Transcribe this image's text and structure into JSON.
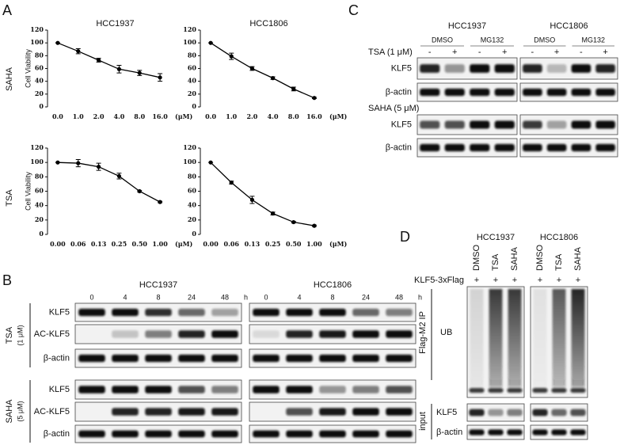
{
  "chart_data": [
    {
      "type": "line",
      "title": "HCC1937",
      "y_label": "Cell Viability",
      "x_label": "(μM)",
      "categories": [
        "0.0",
        "1.0",
        "2.0",
        "4.0",
        "8.0",
        "16.0"
      ],
      "values": [
        100,
        87,
        73,
        59,
        53,
        46
      ],
      "errors": [
        0,
        4,
        3,
        6,
        4,
        6
      ],
      "color": "#000000",
      "ylim": [
        0,
        120
      ],
      "yticks": [
        0,
        20,
        40,
        60,
        80,
        100,
        120
      ]
    },
    {
      "type": "line",
      "title": "HCC1806",
      "x_label": "(μM)",
      "categories": [
        "0.0",
        "1.0",
        "2.0",
        "4.0",
        "8.0",
        "16.0"
      ],
      "values": [
        100,
        79,
        60,
        45,
        28,
        14
      ],
      "errors": [
        0,
        5,
        3,
        2,
        3,
        1
      ],
      "color": "#000000",
      "ylim": [
        0,
        120
      ],
      "yticks": [
        0,
        20,
        40,
        60,
        80,
        100,
        120
      ]
    },
    {
      "type": "line",
      "y_label": "Cell Viability",
      "x_label": "(μM)",
      "categories": [
        "0.00",
        "0.06",
        "0.13",
        "0.25",
        "0.50",
        "1.00"
      ],
      "values": [
        100,
        99,
        94,
        81,
        60,
        45
      ],
      "errors": [
        0,
        5,
        5,
        4,
        1,
        1
      ],
      "color": "#000000",
      "ylim": [
        0,
        120
      ],
      "yticks": [
        0,
        20,
        40,
        60,
        80,
        100,
        120
      ]
    },
    {
      "type": "line",
      "x_label": "(μM)",
      "categories": [
        "0.00",
        "0.06",
        "0.13",
        "0.25",
        "0.50",
        "1.00"
      ],
      "values": [
        100,
        72,
        48,
        29,
        17,
        12
      ],
      "errors": [
        0,
        2,
        5,
        2,
        1,
        1
      ],
      "color": "#000000",
      "ylim": [
        0,
        120
      ],
      "yticks": [
        0,
        20,
        40,
        60,
        80,
        100,
        120
      ]
    }
  ],
  "panel_a": {
    "label": "A",
    "row_labels": [
      "SAHA",
      "TSA"
    ]
  },
  "panel_b": {
    "label": "B",
    "cell_lines": [
      "HCC1937",
      "HCC1806"
    ],
    "time_points": [
      "0",
      "4",
      "8",
      "24",
      "48"
    ],
    "time_unit": "h",
    "groups": [
      {
        "treatment": "TSA",
        "dose": "(1 μM)",
        "rows": [
          "KLF5",
          "AC-KLF5",
          "β-actin"
        ]
      },
      {
        "treatment": "SAHA",
        "dose": "(5 μM)",
        "rows": [
          "KLF5",
          "AC-KLF5",
          "β-actin"
        ]
      }
    ]
  },
  "panel_c": {
    "label": "C",
    "cell_lines": [
      "HCC1937",
      "HCC1806"
    ],
    "conditions": [
      "DMSO",
      "MG132"
    ],
    "treatments": [
      {
        "name": "TSA (1 μM)",
        "signs": [
          "-",
          "+"
        ],
        "rows": [
          "KLF5",
          "β-actin"
        ]
      },
      {
        "name": "SAHA (5 μM)",
        "rows": [
          "KLF5",
          "β-actin"
        ]
      }
    ]
  },
  "panel_d": {
    "label": "D",
    "cell_lines": [
      "HCC1937",
      "HCC1806"
    ],
    "lanes": [
      "DMSO",
      "TSA",
      "SAHA"
    ],
    "construct": "KLF5-3xFlag",
    "construct_sign": "+",
    "ip": {
      "label": "Flag-M2 IP",
      "blot": "UB"
    },
    "input": {
      "label": "input",
      "rows": [
        "KLF5",
        "β-actin"
      ]
    }
  }
}
